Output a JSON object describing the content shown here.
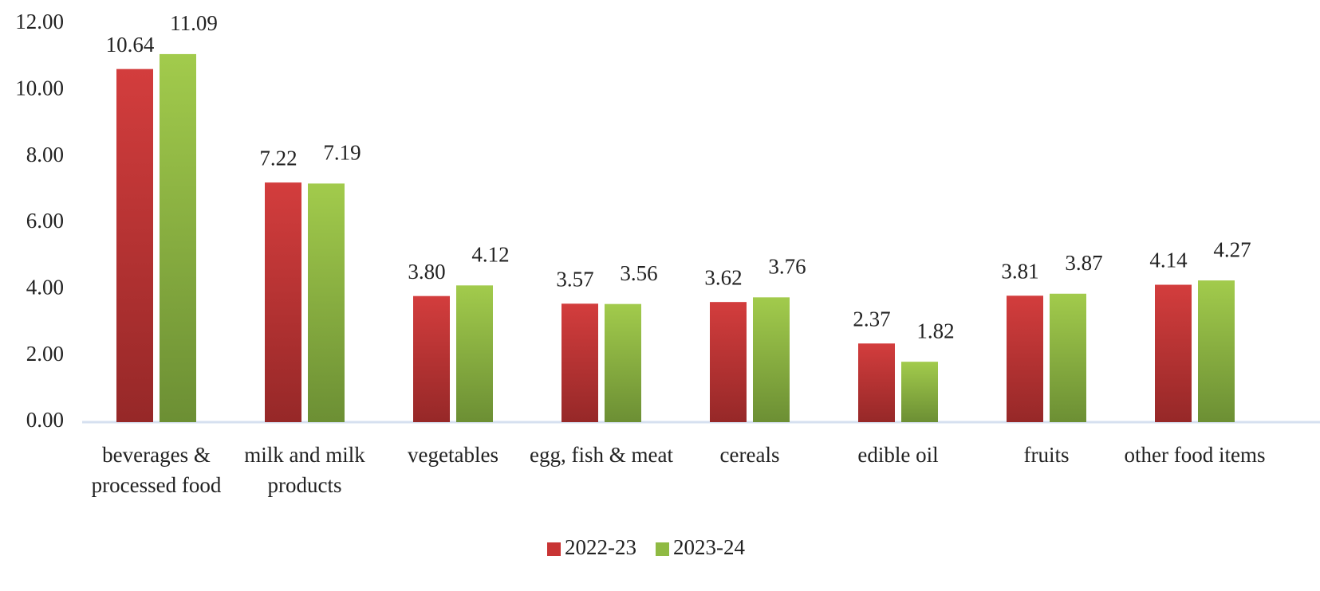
{
  "chart_data": {
    "type": "bar",
    "categories": [
      "beverages & processed food",
      "milk and milk products",
      "vegetables",
      "egg, fish & meat",
      "cereals",
      "edible oil",
      "fruits",
      "other food items"
    ],
    "series": [
      {
        "name": "2022-23",
        "color": "#c83434",
        "values": [
          10.64,
          7.22,
          3.8,
          3.57,
          3.62,
          2.37,
          3.81,
          4.14
        ],
        "value_labels": [
          "10.64",
          "7.22",
          "3.80",
          "3.57",
          "3.62",
          "2.37",
          "3.81",
          "4.14"
        ]
      },
      {
        "name": "2023-24",
        "color": "#8fba43",
        "values": [
          11.09,
          7.19,
          4.12,
          3.56,
          3.76,
          1.82,
          3.87,
          4.27
        ],
        "value_labels": [
          "11.09",
          "7.19",
          "4.12",
          "3.56",
          "3.76",
          "1.82",
          "3.87",
          "4.27"
        ]
      }
    ],
    "ylim": [
      0,
      12
    ],
    "yticks": [
      {
        "value": 0,
        "label": "0.00"
      },
      {
        "value": 2,
        "label": "2.00"
      },
      {
        "value": 4,
        "label": "4.00"
      },
      {
        "value": 6,
        "label": "6.00"
      },
      {
        "value": 8,
        "label": "8.00"
      },
      {
        "value": 10,
        "label": "10.00"
      },
      {
        "value": 12,
        "label": "12.00"
      }
    ],
    "grid": false,
    "legend": "bottom"
  }
}
